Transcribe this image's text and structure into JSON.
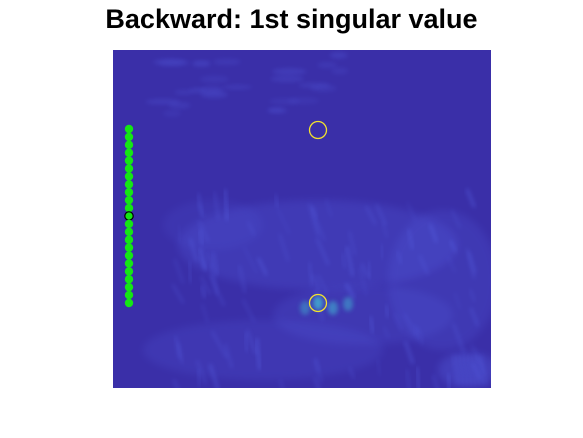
{
  "figure": {
    "title": "Backward: 1st singular value"
  },
  "colors": {
    "field_background": "#3a2fa8",
    "field_highlight": "#5d6cf0",
    "field_peak": "#3fc3d6",
    "sensor_marker": "#14e614",
    "selected_sensor_outline": "#000000",
    "target_circle": "#f2e22e"
  },
  "image": {
    "colormap": "parula",
    "sensor_array": {
      "count": 23,
      "selected_index": 11,
      "orientation": "vertical"
    },
    "targets": {
      "count": 2
    }
  }
}
